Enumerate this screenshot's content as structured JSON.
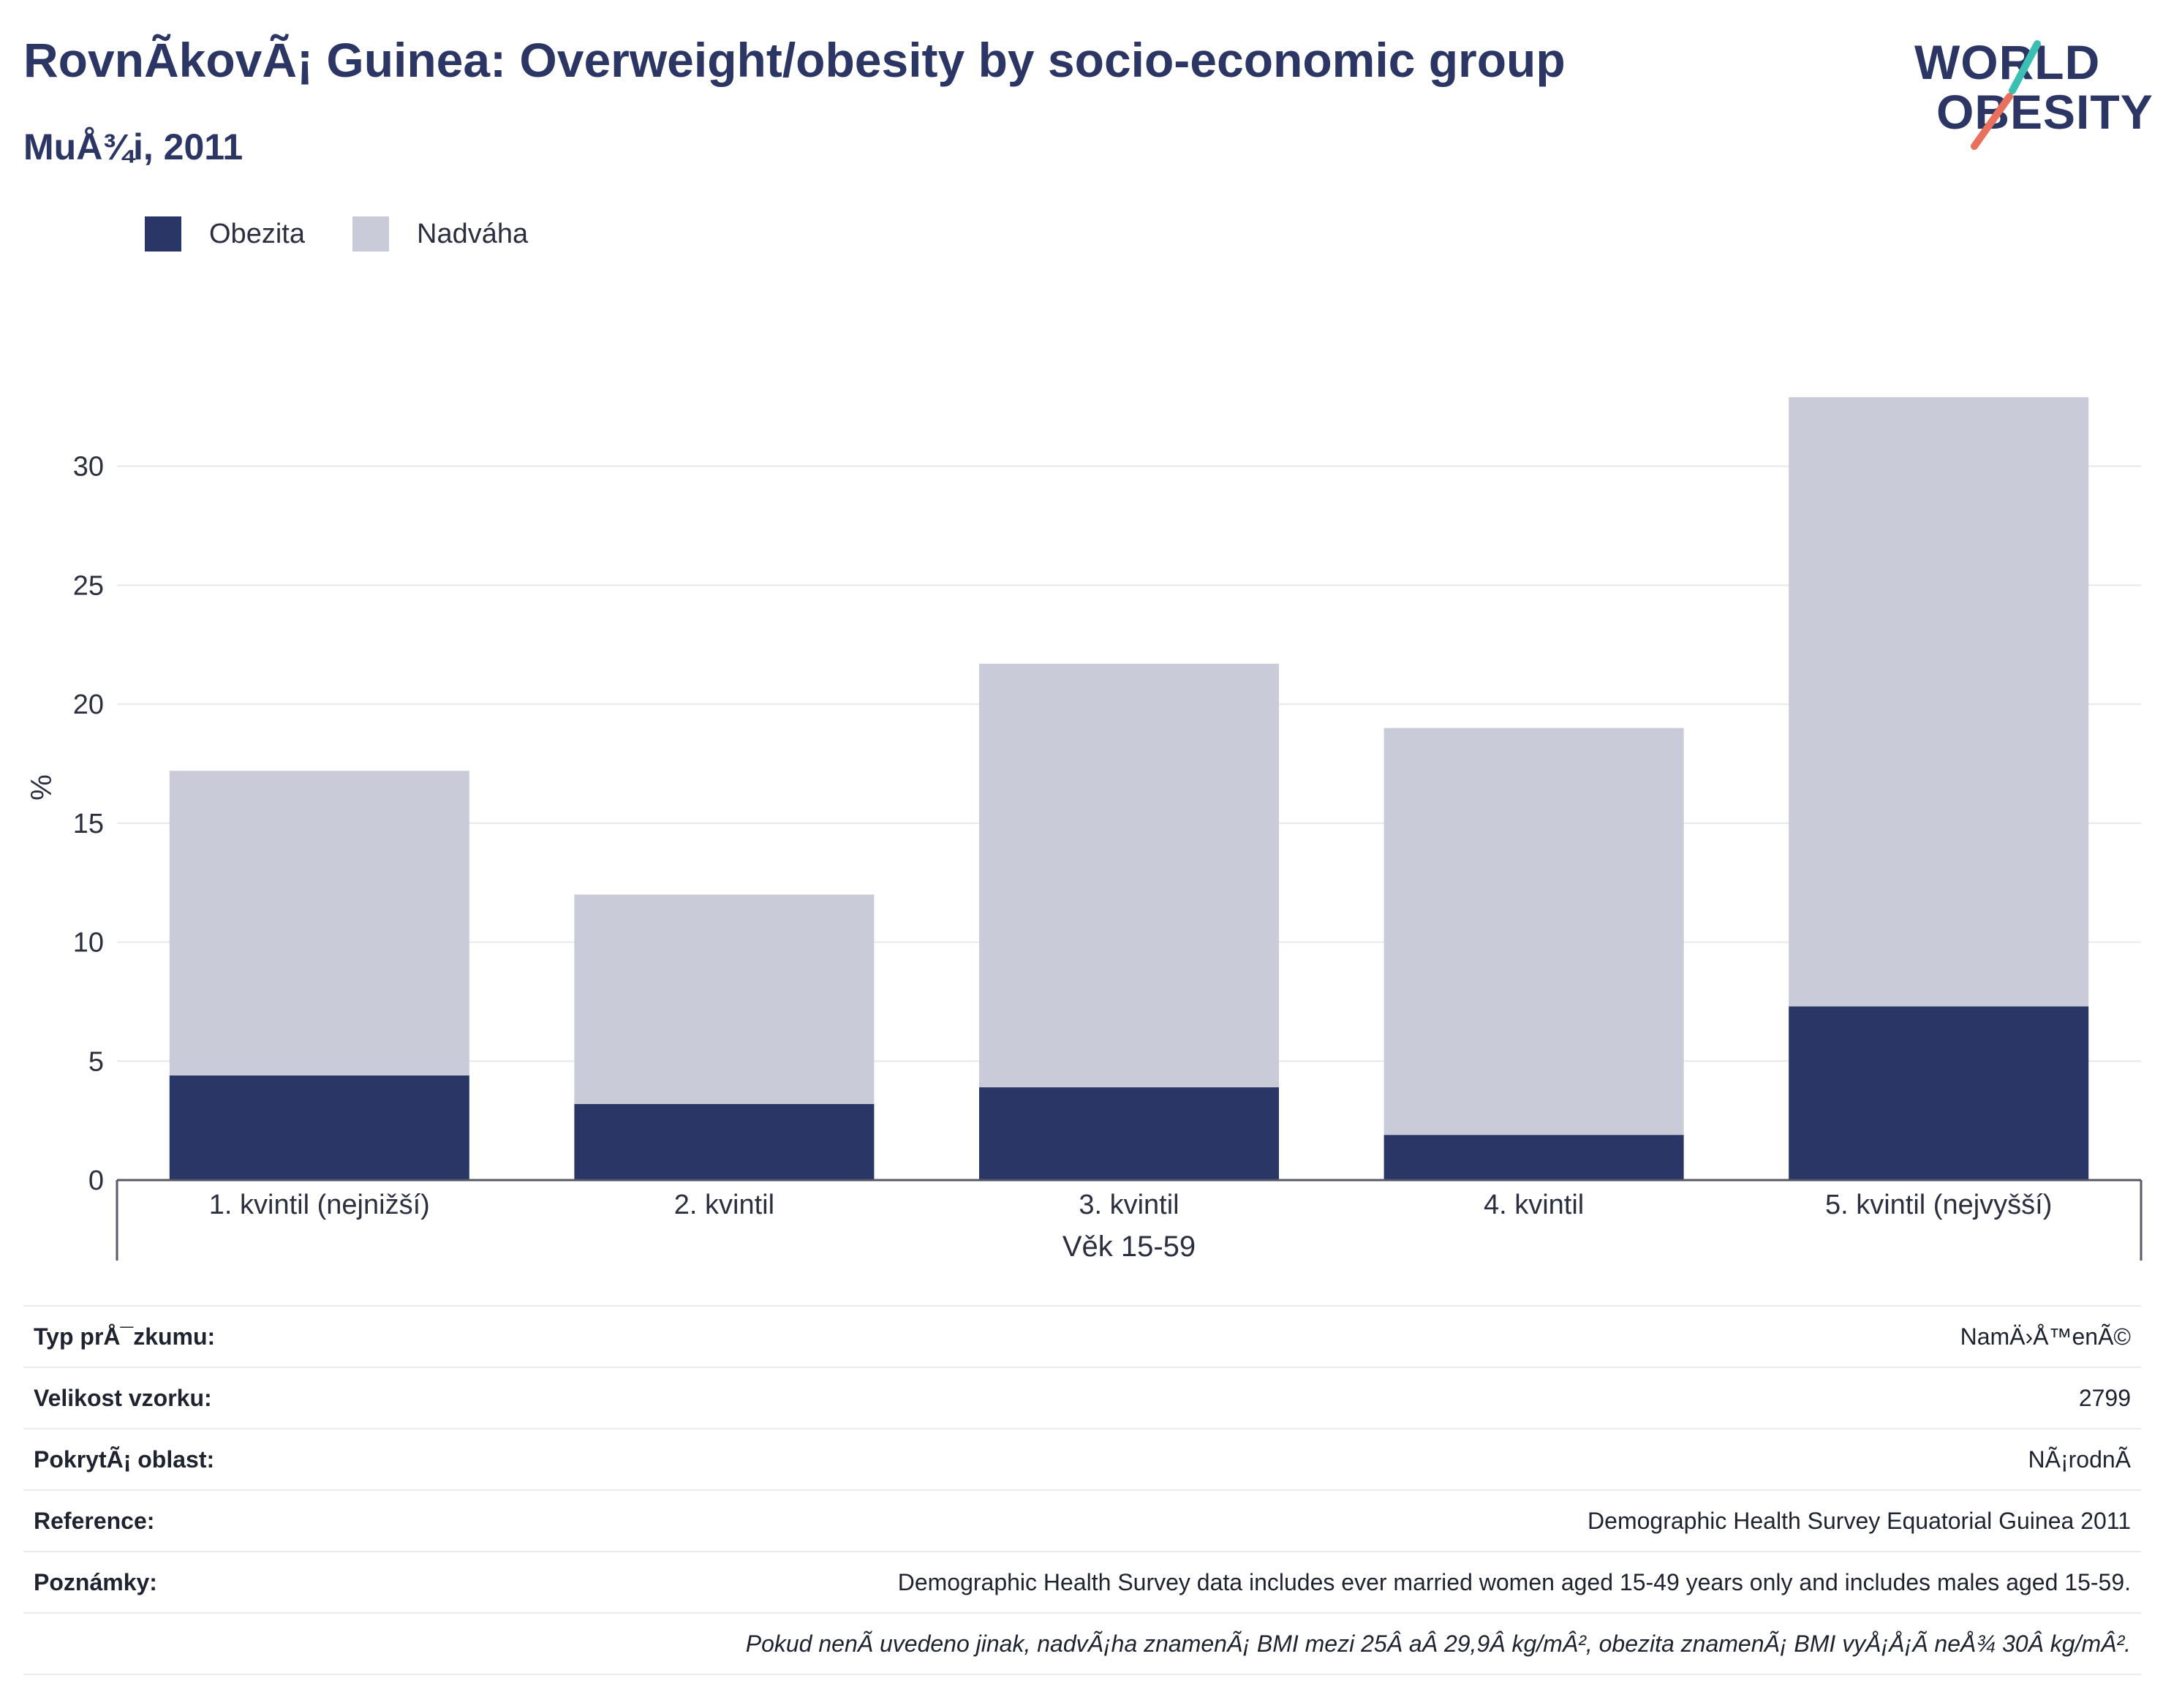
{
  "header": {
    "title": "RovnÃkovÃ¡ Guinea: Overweight/obesity by socio-economic group",
    "subtitle": "MuÅ¾i, 2011"
  },
  "logo": {
    "line1": "WORLD",
    "line2": "OBESITY",
    "accent_teal": "#3bbfb3",
    "accent_red": "#e8705c"
  },
  "legend": [
    {
      "label": "Obezita",
      "color": "#2a3665"
    },
    {
      "label": "Nadváha",
      "color": "#c9ccd8"
    }
  ],
  "chart_data": {
    "type": "bar",
    "stacked": true,
    "categories": [
      "1. kvintil (nejnižší)",
      "2. kvintil",
      "3. kvintil",
      "4. kvintil",
      "5. kvintil (nejvyšší)"
    ],
    "series": [
      {
        "name": "Obezita",
        "color": "#2a3665",
        "values": [
          4.4,
          3.2,
          3.9,
          1.9,
          7.3
        ]
      },
      {
        "name": "Nadváha",
        "color": "#c9ccd8",
        "values": [
          12.8,
          8.8,
          17.8,
          17.1,
          25.6
        ]
      }
    ],
    "ylabel": "%",
    "xgroup_label": "Věk 15-59",
    "ylim": [
      0,
      35
    ],
    "yticks": [
      0,
      5,
      10,
      15,
      20,
      25,
      30
    ],
    "grid": true
  },
  "info": [
    {
      "label": "Typ prÅ¯zkumu:",
      "value": "NamÄ›Å™enÃ©"
    },
    {
      "label": "Velikost vzorku:",
      "value": "2799"
    },
    {
      "label": "PokrytÃ¡ oblast:",
      "value": "NÃ¡rodnÃ"
    },
    {
      "label": "Reference:",
      "value": "Demographic Health Survey Equatorial Guinea 2011"
    },
    {
      "label": "Poznámky:",
      "value": "Demographic Health Survey data includes ever married women aged 15-49 years only and includes males aged 15-59."
    },
    {
      "label": "",
      "value": "Pokud nenÃ uvedeno jinak, nadvÃ¡ha znamenÃ¡ BMI mezi 25Â aÂ 29,9Â kg/mÂ², obezita znamenÃ¡ BMI vyÅ¡Å¡Ã neÅ¾ 30Â kg/mÂ²."
    }
  ]
}
